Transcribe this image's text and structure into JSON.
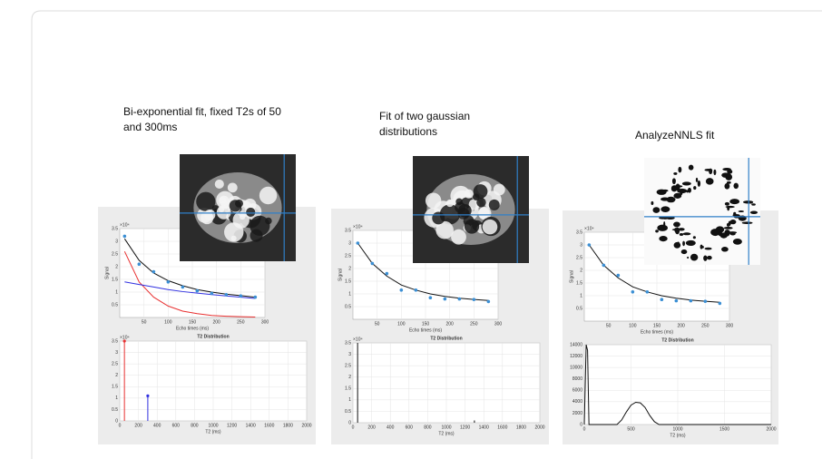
{
  "panels": [
    {
      "title": "Bi-exponential fit, fixed T2s of 50 and 300ms",
      "decay": {
        "ylabel": "Signal",
        "xlabel": "Echo times (ms)",
        "exponent": "×10⁴",
        "xlim": [
          0,
          300
        ],
        "ylim": [
          0,
          3.5
        ],
        "xticks": [
          50,
          100,
          150,
          200,
          250,
          300
        ],
        "yticks": [
          0.5,
          1,
          1.5,
          2,
          2.5,
          3,
          3.5
        ],
        "x": [
          10,
          40,
          70,
          100,
          130,
          160,
          190,
          220,
          250,
          280
        ],
        "lines": [
          {
            "color": "#e83030",
            "values": [
              2.6,
              1.4,
              0.8,
              0.45,
              0.25,
              0.15,
              0.08,
              0.05,
              0.03,
              0.02
            ]
          },
          {
            "color": "#3030e0",
            "values": [
              1.4,
              1.3,
              1.2,
              1.1,
              1.02,
              0.96,
              0.9,
              0.85,
              0.8,
              0.75
            ]
          },
          {
            "color": "#111111",
            "values": [
              3.1,
              2.25,
              1.75,
              1.45,
              1.25,
              1.1,
              1.0,
              0.92,
              0.86,
              0.8
            ]
          }
        ],
        "points": {
          "color": "#3b8fd4",
          "values": [
            3.2,
            2.1,
            1.8,
            1.4,
            1.2,
            1.05,
            0.95,
            0.9,
            0.85,
            0.8
          ]
        }
      },
      "distribution": {
        "title": "T2 Distribution",
        "xlabel": "T2 (ms)",
        "exponent": "×10⁴",
        "xlim": [
          0,
          2000
        ],
        "ylim": [
          0,
          3.5
        ],
        "xticks": [
          0,
          200,
          400,
          600,
          800,
          1000,
          1200,
          1400,
          1600,
          1800,
          2000
        ],
        "yticks": [
          0,
          0.5,
          1,
          1.5,
          2,
          2.5,
          3,
          3.5
        ],
        "markers": true,
        "stems": [
          {
            "x": 50,
            "value": 3.5,
            "color": "#e83030"
          },
          {
            "x": 300,
            "value": 1.1,
            "color": "#3030e0"
          }
        ]
      }
    },
    {
      "title": "Fit of two gaussian distributions",
      "decay": {
        "ylabel": "Signal",
        "xlabel": "Echo times (ms)",
        "exponent": "×10⁴",
        "xlim": [
          0,
          300
        ],
        "ylim": [
          0,
          3.5
        ],
        "xticks": [
          50,
          100,
          150,
          200,
          250,
          300
        ],
        "yticks": [
          0.5,
          1,
          1.5,
          2,
          2.5,
          3,
          3.5
        ],
        "x": [
          10,
          40,
          70,
          100,
          130,
          160,
          190,
          220,
          250,
          280
        ],
        "lines": [
          {
            "color": "#111111",
            "values": [
              3.0,
              2.2,
              1.7,
              1.35,
              1.15,
              1.0,
              0.9,
              0.83,
              0.78,
              0.74
            ]
          }
        ],
        "points": {
          "color": "#3b8fd4",
          "values": [
            3.0,
            2.2,
            1.8,
            1.15,
            1.15,
            0.85,
            0.8,
            0.8,
            0.78,
            0.7
          ]
        }
      },
      "distribution": {
        "title": "T2 Distribution",
        "xlabel": "T2 (ms)",
        "exponent": "×10⁴",
        "xlim": [
          0,
          2000
        ],
        "ylim": [
          0,
          3.5
        ],
        "xticks": [
          0,
          200,
          400,
          600,
          800,
          1000,
          1200,
          1400,
          1600,
          1800,
          2000
        ],
        "yticks": [
          0,
          0.5,
          1,
          1.5,
          2,
          2.5,
          3,
          3.5
        ],
        "markers": false,
        "stems": [
          {
            "x": 50,
            "value": 3.5,
            "color": "#111111"
          },
          {
            "x": 1300,
            "value": 0.1,
            "color": "#111111"
          }
        ]
      }
    },
    {
      "title": "AnalyzeNNLS fit",
      "decay": {
        "ylabel": "Signal",
        "xlabel": "Echo times (ms)",
        "exponent": "×10⁴",
        "xlim": [
          0,
          300
        ],
        "ylim": [
          0,
          3.5
        ],
        "xticks": [
          50,
          100,
          150,
          200,
          250,
          300
        ],
        "yticks": [
          0.5,
          1,
          1.5,
          2,
          2.5,
          3,
          3.5
        ],
        "x": [
          10,
          40,
          70,
          100,
          130,
          160,
          190,
          220,
          250,
          280
        ],
        "lines": [
          {
            "color": "#111111",
            "values": [
              3.0,
              2.2,
              1.7,
              1.35,
              1.15,
              1.0,
              0.9,
              0.83,
              0.78,
              0.74
            ]
          }
        ],
        "points": {
          "color": "#3b8fd4",
          "values": [
            3.0,
            2.2,
            1.8,
            1.15,
            1.15,
            0.85,
            0.8,
            0.8,
            0.78,
            0.7
          ]
        }
      },
      "distribution": {
        "title": "T2 Distribution",
        "xlabel": "T2 (ms)",
        "xlim": [
          0,
          2000
        ],
        "ylim": [
          0,
          14000
        ],
        "xticks": [
          0,
          500,
          1000,
          1500,
          2000
        ],
        "yticks": [
          0,
          2000,
          4000,
          6000,
          8000,
          10000,
          12000,
          14000
        ],
        "lines": [
          {
            "color": "#111111",
            "x": [
              0,
              20,
              35,
              50,
              80,
              350,
              400,
              450,
              500,
              550,
              600,
              650,
              700,
              750,
              800,
              2000
            ],
            "values": [
              0,
              14000,
              13000,
              0,
              0,
              0,
              800,
              2200,
              3400,
              3900,
              3800,
              3000,
              1600,
              500,
              0,
              0
            ]
          }
        ]
      }
    }
  ]
}
